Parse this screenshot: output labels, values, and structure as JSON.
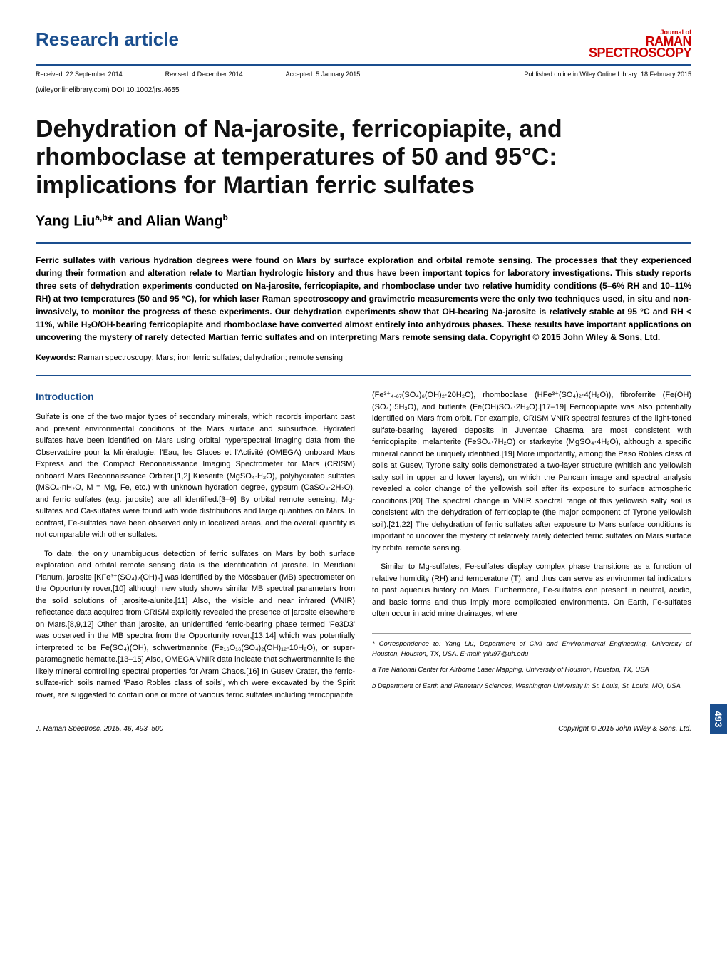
{
  "header": {
    "article_type": "Research article",
    "journal_small": "Journal of",
    "journal_raman": "RAMAN",
    "journal_spec": "SPECTROSCOPY"
  },
  "dates": {
    "received": "Received: 22 September 2014",
    "revised": "Revised: 4 December 2014",
    "accepted": "Accepted: 5 January 2015",
    "published": "Published online in Wiley Online Library: 18 February 2015"
  },
  "doi": "(wileyonlinelibrary.com) DOI 10.1002/jrs.4655",
  "title": "Dehydration of Na-jarosite, ferricopiapite, and rhomboclase at temperatures of 50 and 95°C: implications for Martian ferric sulfates",
  "authors_html": "Yang Liu<sup>a,b</sup>* and Alian Wang<sup>b</sup>",
  "abstract": "Ferric sulfates with various hydration degrees were found on Mars by surface exploration and orbital remote sensing. The processes that they experienced during their formation and alteration relate to Martian hydrologic history and thus have been important topics for laboratory investigations. This study reports three sets of dehydration experiments conducted on Na-jarosite, ferricopiapite, and rhomboclase under two relative humidity conditions (5–6% RH and 10–11% RH) at two temperatures (50 and 95 °C), for which laser Raman spectroscopy and gravimetric measurements were the only two techniques used, in situ and non-invasively, to monitor the progress of these experiments. Our dehydration experiments show that OH-bearing Na-jarosite is relatively stable at 95 °C and RH < 11%, while H₂O/OH-bearing ferricopiapite and rhomboclase have converted almost entirely into anhydrous phases. These results have important applications on uncovering the mystery of rarely detected Martian ferric sulfates and on interpreting Mars remote sensing data. Copyright © 2015 John Wiley & Sons, Ltd.",
  "keywords_label": "Keywords:",
  "keywords": "Raman spectroscopy; Mars; iron ferric sulfates; dehydration; remote sensing",
  "section_intro": "Introduction",
  "col1_p1": "Sulfate is one of the two major types of secondary minerals, which records important past and present environmental conditions of the Mars surface and subsurface. Hydrated sulfates have been identified on Mars using orbital hyperspectral imaging data from the Observatoire pour la Minéralogie, l'Eau, les Glaces et l'Activité (OMEGA) onboard Mars Express and the Compact Reconnaissance Imaging Spectrometer for Mars (CRISM) onboard Mars Reconnaissance Orbiter.[1,2] Kieserite (MgSO₄·H₂O), polyhydrated sulfates (MSO₄·nH₂O, M = Mg, Fe, etc.) with unknown hydration degree, gypsum (CaSO₄·2H₂O), and ferric sulfates (e.g. jarosite) are all identified.[3–9] By orbital remote sensing, Mg-sulfates and Ca-sulfates were found with wide distributions and large quantities on Mars. In contrast, Fe-sulfates have been observed only in localized areas, and the overall quantity is not comparable with other sulfates.",
  "col1_p2": "To date, the only unambiguous detection of ferric sulfates on Mars by both surface exploration and orbital remote sensing data is the identification of jarosite. In Meridiani Planum, jarosite [KFe³⁺(SO₄)₂(OH)₆] was identified by the Mössbauer (MB) spectrometer on the Opportunity rover,[10] although new study shows similar MB spectral parameters from the solid solutions of jarosite-alunite.[11] Also, the visible and near infrared (VNIR) reflectance data acquired from CRISM explicitly revealed the presence of jarosite elsewhere on Mars.[8,9,12] Other than jarosite, an unidentified ferric-bearing phase termed 'Fe3D3' was observed in the MB spectra from the Opportunity rover,[13,14] which was potentially interpreted to be Fe(SO₄)(OH), schwertmannite (Fe₁₆O₁₆(SO₄)₂(OH)₁₂·10H₂O), or super-paramagnetic hematite.[13–15] Also, OMEGA VNIR data indicate that schwertmannite is the likely mineral controlling spectral properties for Aram Chaos.[16] In Gusev Crater, the ferric-sulfate-rich soils named 'Paso Robles class of soils', which were excavated by the Spirit rover, are suggested to contain one or more of various ferric sulfates including ferricopiapite",
  "col2_p1": "(Fe³⁺₄.₆₇(SO₄)₆(OH)₂·20H₂O), rhomboclase (HFe³⁺(SO₄)₂·4(H₂O)), fibroferrite (Fe(OH)(SO₄)·5H₂O), and butlerite (Fe(OH)SO₄·2H₂O).[17–19] Ferricopiapite was also potentially identified on Mars from orbit. For example, CRISM VNIR spectral features of the light-toned sulfate-bearing layered deposits in Juventae Chasma are most consistent with ferricopiapite, melanterite (FeSO₄·7H₂O) or starkeyite (MgSO₄·4H₂O), although a specific mineral cannot be uniquely identified.[19] More importantly, among the Paso Robles class of soils at Gusev, Tyrone salty soils demonstrated a two-layer structure (whitish and yellowish salty soil in upper and lower layers), on which the Pancam image and spectral analysis revealed a color change of the yellowish soil after its exposure to surface atmospheric conditions.[20] The spectral change in VNIR spectral range of this yellowish salty soil is consistent with the dehydration of ferricopiapite (the major component of Tyrone yellowish soil).[21,22] The dehydration of ferric sulfates after exposure to Mars surface conditions is important to uncover the mystery of relatively rarely detected ferric sulfates on Mars surface by orbital remote sensing.",
  "col2_p2": "Similar to Mg-sulfates, Fe-sulfates display complex phase transitions as a function of relative humidity (RH) and temperature (T), and thus can serve as environmental indicators to past aqueous history on Mars. Furthermore, Fe-sulfates can present in neutral, acidic, and basic forms and thus imply more complicated environments. On Earth, Fe-sulfates often occur in acid mine drainages, where",
  "footnote_corr": "* Correspondence to: Yang Liu, Department of Civil and Environmental Engineering, University of Houston, Houston, TX, USA. E-mail: yliu97@uh.edu",
  "footnote_a": "a The National Center for Airborne Laser Mapping, University of Houston, Houston, TX, USA",
  "footnote_b": "b Department of Earth and Planetary Sciences, Washington University in St. Louis, St. Louis, MO, USA",
  "footer": {
    "left": "J. Raman Spectrosc. 2015, 46, 493–500",
    "right": "Copyright © 2015 John Wiley & Sons, Ltd."
  },
  "page_num": "493"
}
